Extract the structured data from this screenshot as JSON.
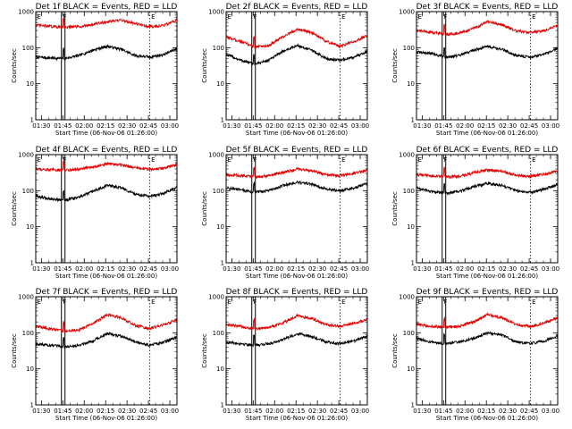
{
  "colors": {
    "events": "#000000",
    "lld": "#e00000",
    "axes": "#000000",
    "background": "#ffffff"
  },
  "chart_data": [
    {
      "type": "line",
      "title": "Det 1f BLACK = Events, RED = LLD",
      "xlabel": "Start Time (06-Nov-06 01:26:00)",
      "ylabel": "Counts/sec",
      "xticks": [
        "01:30",
        "01:45",
        "02:00",
        "02:15",
        "02:30",
        "02:45",
        "03:00"
      ],
      "yticks": [
        "1",
        "10",
        "100",
        "1000"
      ],
      "ylog": true,
      "ylim": [
        1,
        1000
      ],
      "xlim_min": [
        0,
        99
      ],
      "series": [
        {
          "name": "Events",
          "t_min": [
            0,
            10,
            20,
            30,
            40,
            50,
            60,
            70,
            80,
            90,
            99
          ],
          "values": [
            55,
            52,
            50,
            60,
            85,
            110,
            90,
            60,
            55,
            65,
            95
          ]
        },
        {
          "name": "LLD",
          "t_min": [
            0,
            10,
            20,
            30,
            40,
            50,
            60,
            70,
            80,
            90,
            99
          ],
          "values": [
            420,
            390,
            370,
            380,
            440,
            520,
            580,
            470,
            380,
            420,
            580
          ]
        }
      ],
      "markers": [
        {
          "label": "E",
          "t_min": 0
        },
        {
          "label": "F",
          "t_min": 18
        },
        {
          "label": "E",
          "t_min": 80
        }
      ]
    },
    {
      "type": "line",
      "title": "Det 2f BLACK = Events, RED = LLD",
      "xlabel": "Start Time (06-Nov-06 01:26:00)",
      "ylabel": "Counts/sec",
      "xticks": [
        "01:30",
        "01:45",
        "02:00",
        "02:15",
        "02:30",
        "02:45",
        "03:00"
      ],
      "yticks": [
        "1",
        "10",
        "100",
        "1000"
      ],
      "ylog": true,
      "ylim": [
        1,
        1000
      ],
      "xlim_min": [
        0,
        99
      ],
      "series": [
        {
          "name": "Events",
          "t_min": [
            0,
            10,
            20,
            30,
            40,
            50,
            60,
            70,
            80,
            90,
            99
          ],
          "values": [
            65,
            45,
            35,
            45,
            80,
            115,
            85,
            50,
            45,
            55,
            80
          ]
        },
        {
          "name": "LLD",
          "t_min": [
            0,
            10,
            20,
            30,
            40,
            50,
            60,
            70,
            80,
            90,
            99
          ],
          "values": [
            200,
            150,
            105,
            115,
            200,
            330,
            260,
            150,
            110,
            150,
            220
          ]
        }
      ],
      "markers": [
        {
          "label": "E",
          "t_min": 0
        },
        {
          "label": "F",
          "t_min": 18
        },
        {
          "label": "E",
          "t_min": 80
        }
      ]
    },
    {
      "type": "line",
      "title": "Det 3f BLACK = Events, RED = LLD",
      "xlabel": "Start Time (06-Nov-06 01:26:00)",
      "ylabel": "Counts/sec",
      "xticks": [
        "01:30",
        "01:45",
        "02:00",
        "02:15",
        "02:30",
        "02:45",
        "03:00"
      ],
      "yticks": [
        "1",
        "10",
        "100",
        "1000"
      ],
      "ylog": true,
      "ylim": [
        1,
        1000
      ],
      "xlim_min": [
        0,
        99
      ],
      "series": [
        {
          "name": "Events",
          "t_min": [
            0,
            10,
            20,
            30,
            40,
            50,
            60,
            70,
            80,
            90,
            99
          ],
          "values": [
            75,
            70,
            55,
            60,
            85,
            110,
            90,
            60,
            55,
            65,
            95
          ]
        },
        {
          "name": "LLD",
          "t_min": [
            0,
            10,
            20,
            30,
            40,
            50,
            60,
            70,
            80,
            90,
            99
          ],
          "values": [
            300,
            270,
            240,
            250,
            340,
            520,
            430,
            290,
            260,
            300,
            420
          ]
        }
      ],
      "markers": [
        {
          "label": "E",
          "t_min": 0
        },
        {
          "label": "F",
          "t_min": 18
        },
        {
          "label": "E",
          "t_min": 80
        }
      ]
    },
    {
      "type": "line",
      "title": "Det 4f BLACK = Events, RED = LLD",
      "xlabel": "Start Time (06-Nov-06 01:26:00)",
      "ylabel": "Counts/sec",
      "xticks": [
        "01:30",
        "01:45",
        "02:00",
        "02:15",
        "02:30",
        "02:45",
        "03:00"
      ],
      "yticks": [
        "1",
        "10",
        "100",
        "1000"
      ],
      "ylog": true,
      "ylim": [
        1,
        1000
      ],
      "xlim_min": [
        0,
        99
      ],
      "series": [
        {
          "name": "Events",
          "t_min": [
            0,
            10,
            20,
            30,
            40,
            50,
            60,
            70,
            80,
            90,
            99
          ],
          "values": [
            70,
            60,
            55,
            65,
            95,
            140,
            120,
            80,
            70,
            85,
            125
          ]
        },
        {
          "name": "LLD",
          "t_min": [
            0,
            10,
            20,
            30,
            40,
            50,
            60,
            70,
            80,
            90,
            99
          ],
          "values": [
            400,
            380,
            370,
            390,
            460,
            560,
            520,
            430,
            390,
            420,
            530
          ]
        }
      ],
      "markers": [
        {
          "label": "E",
          "t_min": 0
        },
        {
          "label": "F",
          "t_min": 18
        },
        {
          "label": "E",
          "t_min": 80
        }
      ]
    },
    {
      "type": "line",
      "title": "Det 5f BLACK = Events, RED = LLD",
      "xlabel": "Start Time (06-Nov-06 01:26:00)",
      "ylabel": "Counts/sec",
      "xticks": [
        "01:30",
        "01:45",
        "02:00",
        "02:15",
        "02:30",
        "02:45",
        "03:00"
      ],
      "yticks": [
        "1",
        "10",
        "100",
        "1000"
      ],
      "ylog": true,
      "ylim": [
        1,
        1000
      ],
      "xlim_min": [
        0,
        99
      ],
      "series": [
        {
          "name": "Events",
          "t_min": [
            0,
            10,
            20,
            30,
            40,
            50,
            60,
            70,
            80,
            90,
            99
          ],
          "values": [
            120,
            105,
            90,
            100,
            140,
            170,
            150,
            110,
            100,
            120,
            160
          ]
        },
        {
          "name": "LLD",
          "t_min": [
            0,
            10,
            20,
            30,
            40,
            50,
            60,
            70,
            80,
            90,
            99
          ],
          "values": [
            280,
            260,
            240,
            260,
            320,
            400,
            360,
            280,
            260,
            300,
            380
          ]
        }
      ],
      "markers": [
        {
          "label": "E",
          "t_min": 0
        },
        {
          "label": "F",
          "t_min": 18
        },
        {
          "label": "E",
          "t_min": 80
        }
      ]
    },
    {
      "type": "line",
      "title": "Det 6f BLACK = Events, RED = LLD",
      "xlabel": "Start Time (06-Nov-06 01:26:00)",
      "ylabel": "Counts/sec",
      "xticks": [
        "01:30",
        "01:45",
        "02:00",
        "02:15",
        "02:30",
        "02:45",
        "03:00"
      ],
      "yticks": [
        "1",
        "10",
        "100",
        "1000"
      ],
      "ylog": true,
      "ylim": [
        1,
        1000
      ],
      "xlim_min": [
        0,
        99
      ],
      "series": [
        {
          "name": "Events",
          "t_min": [
            0,
            10,
            20,
            30,
            40,
            50,
            60,
            70,
            80,
            90,
            99
          ],
          "values": [
            120,
            95,
            85,
            95,
            130,
            160,
            140,
            100,
            90,
            110,
            150
          ]
        },
        {
          "name": "LLD",
          "t_min": [
            0,
            10,
            20,
            30,
            40,
            50,
            60,
            70,
            80,
            90,
            99
          ],
          "values": [
            280,
            260,
            240,
            250,
            310,
            380,
            340,
            270,
            250,
            290,
            360
          ]
        }
      ],
      "markers": [
        {
          "label": "E",
          "t_min": 0
        },
        {
          "label": "F",
          "t_min": 18
        },
        {
          "label": "E",
          "t_min": 80
        }
      ]
    },
    {
      "type": "line",
      "title": "Det 7f BLACK = Events, RED = LLD",
      "xlabel": "Start Time (06-Nov-06 01:26:00)",
      "ylabel": "Counts/sec",
      "xticks": [
        "01:30",
        "01:45",
        "02:00",
        "02:15",
        "02:30",
        "02:45",
        "03:00"
      ],
      "yticks": [
        "1",
        "10",
        "100",
        "1000"
      ],
      "ylog": true,
      "ylim": [
        1,
        1000
      ],
      "xlim_min": [
        0,
        99
      ],
      "series": [
        {
          "name": "Events",
          "t_min": [
            0,
            10,
            20,
            30,
            40,
            50,
            60,
            70,
            80,
            90,
            99
          ],
          "values": [
            50,
            45,
            40,
            45,
            60,
            95,
            80,
            55,
            45,
            55,
            75
          ]
        },
        {
          "name": "LLD",
          "t_min": [
            0,
            10,
            20,
            30,
            40,
            50,
            60,
            70,
            80,
            90,
            99
          ],
          "values": [
            150,
            130,
            110,
            120,
            180,
            320,
            260,
            160,
            130,
            170,
            230
          ]
        }
      ],
      "markers": [
        {
          "label": "E",
          "t_min": 0
        },
        {
          "label": "F",
          "t_min": 18
        },
        {
          "label": "E",
          "t_min": 80
        }
      ]
    },
    {
      "type": "line",
      "title": "Det 8f BLACK = Events, RED = LLD",
      "xlabel": "Start Time (06-Nov-06 01:26:00)",
      "ylabel": "Counts/sec",
      "xticks": [
        "01:30",
        "01:45",
        "02:00",
        "02:15",
        "02:30",
        "02:45",
        "03:00"
      ],
      "yticks": [
        "1",
        "10",
        "100",
        "1000"
      ],
      "ylog": true,
      "ylim": [
        1,
        1000
      ],
      "xlim_min": [
        0,
        99
      ],
      "series": [
        {
          "name": "Events",
          "t_min": [
            0,
            10,
            20,
            30,
            40,
            50,
            60,
            70,
            80,
            90,
            99
          ],
          "values": [
            55,
            50,
            45,
            50,
            65,
            95,
            80,
            55,
            50,
            60,
            80
          ]
        },
        {
          "name": "LLD",
          "t_min": [
            0,
            10,
            20,
            30,
            40,
            50,
            60,
            70,
            80,
            90,
            99
          ],
          "values": [
            170,
            150,
            130,
            140,
            190,
            300,
            250,
            170,
            150,
            180,
            240
          ]
        }
      ],
      "markers": [
        {
          "label": "E",
          "t_min": 0
        },
        {
          "label": "F",
          "t_min": 18
        },
        {
          "label": "E",
          "t_min": 80
        }
      ]
    },
    {
      "type": "line",
      "title": "Det 9f BLACK = Events, RED = LLD",
      "xlabel": "Start Time (06-Nov-06 01:26:00)",
      "ylabel": "Counts/sec",
      "xticks": [
        "01:30",
        "01:45",
        "02:00",
        "02:15",
        "02:30",
        "02:45",
        "03:00"
      ],
      "yticks": [
        "1",
        "10",
        "100",
        "1000"
      ],
      "ylog": true,
      "ylim": [
        1,
        1000
      ],
      "xlim_min": [
        0,
        99
      ],
      "series": [
        {
          "name": "Events",
          "t_min": [
            0,
            10,
            20,
            30,
            40,
            50,
            60,
            70,
            80,
            90,
            99
          ],
          "values": [
            70,
            55,
            50,
            55,
            70,
            100,
            85,
            55,
            50,
            60,
            80
          ]
        },
        {
          "name": "LLD",
          "t_min": [
            0,
            10,
            20,
            30,
            40,
            50,
            60,
            70,
            80,
            90,
            99
          ],
          "values": [
            170,
            155,
            140,
            150,
            200,
            320,
            260,
            170,
            150,
            190,
            260
          ]
        }
      ],
      "markers": [
        {
          "label": "E",
          "t_min": 0
        },
        {
          "label": "F",
          "t_min": 18
        },
        {
          "label": "E",
          "t_min": 80
        }
      ]
    }
  ]
}
